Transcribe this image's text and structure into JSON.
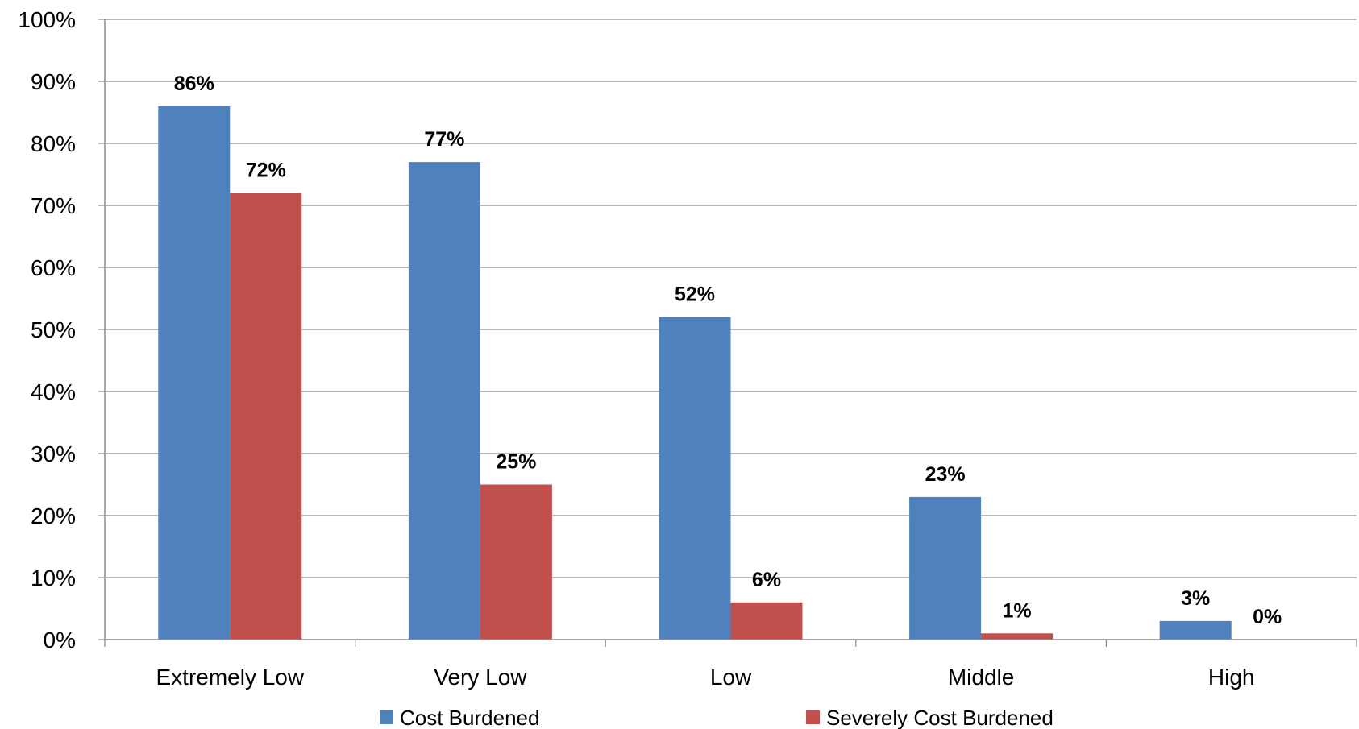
{
  "chart_data": {
    "type": "bar",
    "title": "",
    "xlabel": "",
    "ylabel": "",
    "categories": [
      "Extremely Low",
      "Very Low",
      "Low",
      "Middle",
      "High"
    ],
    "series": [
      {
        "name": "Cost Burdened",
        "values": [
          86,
          77,
          52,
          23,
          3
        ],
        "labels": [
          "86%",
          "77%",
          "52%",
          "23%",
          "3%"
        ],
        "color": "#4F81BD"
      },
      {
        "name": "Severely Cost Burdened",
        "values": [
          72,
          25,
          6,
          1,
          0
        ],
        "labels": [
          "72%",
          "25%",
          "6%",
          "1%",
          "0%"
        ],
        "color": "#C0504D"
      }
    ],
    "ylim": [
      0,
      100
    ],
    "yticks": [
      0,
      10,
      20,
      30,
      40,
      50,
      60,
      70,
      80,
      90,
      100
    ],
    "ytick_labels": [
      "0%",
      "10%",
      "20%",
      "30%",
      "40%",
      "50%",
      "60%",
      "70%",
      "80%",
      "90%",
      "100%"
    ],
    "grid": true,
    "legend_position": "bottom"
  }
}
